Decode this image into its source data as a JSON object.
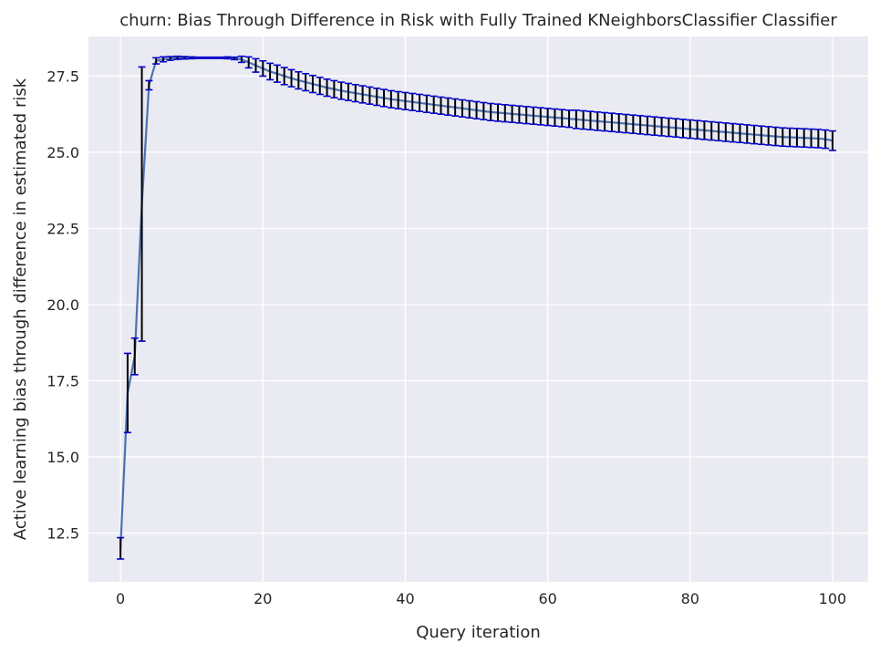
{
  "chart_data": {
    "type": "line",
    "title": "churn: Bias Through Difference in Risk with Fully Trained KNeighborsClassifier Classifier",
    "xlabel": "Query iteration",
    "ylabel": "Active learning bias through difference in estimated risk",
    "xlim": [
      -4.5,
      105
    ],
    "ylim": [
      10.9,
      28.8
    ],
    "x_ticks": [
      0,
      20,
      40,
      60,
      80,
      100
    ],
    "x_tick_labels": [
      "0",
      "20",
      "40",
      "60",
      "80",
      "100"
    ],
    "y_ticks": [
      12.5,
      15.0,
      17.5,
      20.0,
      22.5,
      25.0,
      27.5
    ],
    "y_tick_labels": [
      "12.5",
      "15.0",
      "17.5",
      "20.0",
      "22.5",
      "25.0",
      "27.5"
    ],
    "grid": true,
    "background": "#eaeaf2",
    "line_color": "#4c72b0",
    "errorbar_color": "#000000",
    "cap_color": "#0000cc",
    "series": [
      {
        "x": [
          0,
          1,
          2,
          3,
          4,
          5,
          6,
          7,
          8,
          9,
          10,
          11,
          12,
          13,
          14,
          15,
          16,
          17,
          18,
          19,
          20,
          21,
          22,
          23,
          24,
          25,
          26,
          27,
          28,
          29,
          30,
          31,
          32,
          33,
          34,
          35,
          36,
          37,
          38,
          39,
          40,
          41,
          42,
          43,
          44,
          45,
          46,
          47,
          48,
          49,
          50,
          51,
          52,
          53,
          54,
          55,
          56,
          57,
          58,
          59,
          60,
          61,
          62,
          63,
          64,
          65,
          66,
          67,
          68,
          69,
          70,
          71,
          72,
          73,
          74,
          75,
          76,
          77,
          78,
          79,
          80,
          81,
          82,
          83,
          84,
          85,
          86,
          87,
          88,
          89,
          90,
          91,
          92,
          93,
          94,
          95,
          96,
          97,
          98,
          99,
          100
        ],
        "y": [
          12.0,
          17.1,
          18.3,
          23.3,
          27.2,
          28.0,
          28.05,
          28.08,
          28.1,
          28.1,
          28.1,
          28.1,
          28.1,
          28.1,
          28.1,
          28.1,
          28.08,
          28.05,
          27.95,
          27.85,
          27.75,
          27.65,
          27.58,
          27.5,
          27.43,
          27.36,
          27.3,
          27.24,
          27.18,
          27.12,
          27.07,
          27.02,
          26.98,
          26.94,
          26.9,
          26.86,
          26.82,
          26.78,
          26.74,
          26.71,
          26.68,
          26.65,
          26.62,
          26.59,
          26.56,
          26.53,
          26.5,
          26.47,
          26.44,
          26.41,
          26.38,
          26.35,
          26.32,
          26.3,
          26.28,
          26.26,
          26.24,
          26.22,
          26.2,
          26.18,
          26.16,
          26.14,
          26.12,
          26.1,
          26.08,
          26.06,
          26.04,
          26.02,
          26.0,
          25.98,
          25.96,
          25.94,
          25.92,
          25.9,
          25.88,
          25.86,
          25.84,
          25.82,
          25.8,
          25.78,
          25.76,
          25.74,
          25.72,
          25.7,
          25.68,
          25.66,
          25.64,
          25.62,
          25.6,
          25.58,
          25.56,
          25.54,
          25.52,
          25.5,
          25.49,
          25.48,
          25.47,
          25.46,
          25.45,
          25.43,
          25.38
        ],
        "error": [
          0.35,
          1.3,
          0.6,
          4.5,
          0.15,
          0.1,
          0.08,
          0.06,
          0.05,
          0.04,
          0.03,
          0.02,
          0.02,
          0.02,
          0.02,
          0.03,
          0.04,
          0.1,
          0.18,
          0.22,
          0.25,
          0.27,
          0.28,
          0.28,
          0.28,
          0.28,
          0.28,
          0.28,
          0.28,
          0.28,
          0.28,
          0.28,
          0.28,
          0.28,
          0.28,
          0.28,
          0.28,
          0.28,
          0.28,
          0.28,
          0.28,
          0.28,
          0.28,
          0.28,
          0.28,
          0.28,
          0.28,
          0.28,
          0.28,
          0.28,
          0.28,
          0.28,
          0.28,
          0.28,
          0.28,
          0.28,
          0.28,
          0.28,
          0.28,
          0.28,
          0.28,
          0.28,
          0.28,
          0.28,
          0.3,
          0.3,
          0.3,
          0.3,
          0.3,
          0.3,
          0.3,
          0.3,
          0.3,
          0.3,
          0.3,
          0.3,
          0.3,
          0.3,
          0.3,
          0.3,
          0.3,
          0.3,
          0.3,
          0.3,
          0.3,
          0.3,
          0.3,
          0.3,
          0.3,
          0.3,
          0.3,
          0.3,
          0.3,
          0.3,
          0.3,
          0.3,
          0.3,
          0.3,
          0.3,
          0.3,
          0.32
        ]
      }
    ]
  }
}
